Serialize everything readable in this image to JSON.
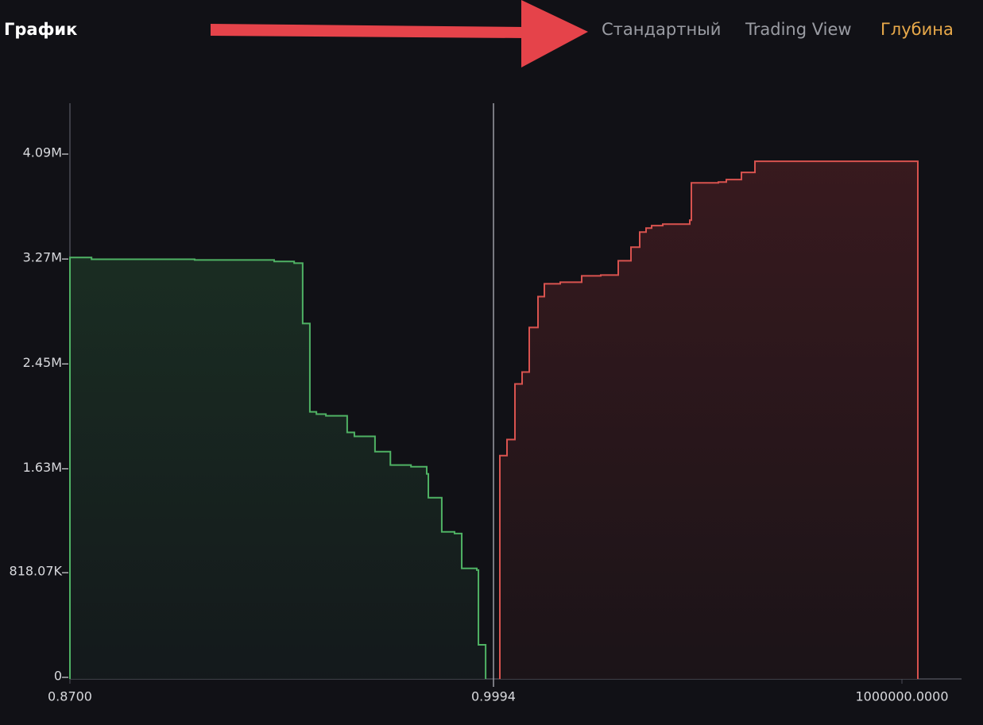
{
  "header": {
    "title": "График",
    "tabs": [
      "Стандартный",
      "Trading View",
      "Глубина"
    ]
  },
  "chart_data": {
    "type": "depth",
    "xlim": [
      0.87,
      1146000
    ],
    "xticks": [
      {
        "value": 0.87,
        "label": "0.8700"
      },
      {
        "value": 0.9994,
        "label": "0.9994"
      },
      {
        "value": 1000000,
        "label": "1000000.0000"
      }
    ],
    "ylim": [
      0,
      4500000
    ],
    "yticks": [
      0,
      {
        "value": 818070,
        "label": "818.07K"
      },
      {
        "value": 1630000,
        "label": "1.63M"
      },
      {
        "value": 2450000,
        "label": "2.45M"
      },
      {
        "value": 3270000,
        "label": "3.27M"
      },
      {
        "value": 4090000,
        "label": "4.09M"
      }
    ],
    "mid_price": 0.9994,
    "series": [
      {
        "color": "#4fb264",
        "x": [
          0.87,
          0.8766,
          0.9081,
          0.9324,
          0.9385,
          0.9411,
          0.9433,
          0.9453,
          0.9482,
          0.9547,
          0.9569,
          0.9632,
          0.9679,
          0.9742,
          0.979,
          0.9795,
          0.9836,
          0.9875,
          0.9897,
          0.9943,
          0.9948,
          0.997
        ],
        "values": [
          3294000,
          3280000,
          3275000,
          3263000,
          3250000,
          2778000,
          2088000,
          2070000,
          2057000,
          1927000,
          1896000,
          1777000,
          1672000,
          1659000,
          1603000,
          1417000,
          1150000,
          1137000,
          864000,
          851000,
          267000,
          0
        ]
      },
      {
        "color": "#d9534f",
        "x": [
          15564,
          33074,
          52529,
          70038,
          87548,
          108948,
          124512,
          163422,
          215951,
          262643,
          305444,
          336572,
          357972,
          373536,
          387155,
          414392,
          480539,
          484430,
          550577,
          570032,
          606996,
          640070,
          1038897
        ],
        "values": [
          1746000,
          1871000,
          2306000,
          2399000,
          2747000,
          2989000,
          3089000,
          3101000,
          3151000,
          3157000,
          3269000,
          3375000,
          3493000,
          3524000,
          3543000,
          3555000,
          3586000,
          3878000,
          3884000,
          3903000,
          3959000,
          4046000,
          0
        ]
      }
    ]
  }
}
